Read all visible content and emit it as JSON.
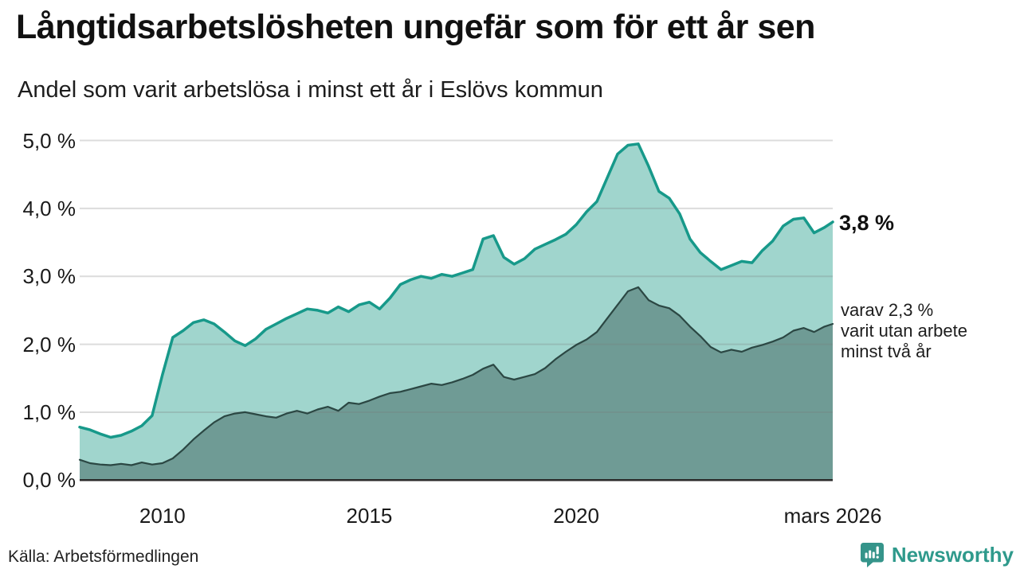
{
  "header": {
    "title": "Långtidsarbetslösheten ungefär som för ett år sen",
    "subtitle": "Andel som varit arbetslösa i minst ett år i Eslövs kommun"
  },
  "annotations": {
    "latest_total": "3,8 %",
    "secondary_line1": "varav 2,3 %",
    "secondary_line2": "varit utan arbete",
    "secondary_line3": "minst två år"
  },
  "footer": {
    "source": "Källa: Arbetsförmedlingen",
    "brand": "Newsworthy"
  },
  "colors": {
    "series1_line": "#17998a",
    "series1_fill": "#a0d5cd",
    "series2_line": "#2b4743",
    "series2_fill": "#6f9b95",
    "axis": "#2b2b2b",
    "gridline": "rgba(120,120,120,0.26)",
    "brand_teal": "#2f9a8c",
    "icon_teal": "#35948a"
  },
  "chart_data": {
    "type": "area",
    "title": "Långtidsarbetslösheten ungefär som för ett år sen",
    "subtitle": "Andel som varit arbetslösa i minst ett år i Eslövs kommun",
    "xlabel": "",
    "ylabel": "",
    "xlim": [
      2008,
      2026.2
    ],
    "ylim": [
      0,
      5
    ],
    "grid": "horizontal",
    "legend": "none",
    "yticks": [
      0,
      1,
      2,
      3,
      4,
      5
    ],
    "ytick_labels": [
      "0,0 %",
      "1,0 %",
      "2,0 %",
      "3,0 %",
      "4,0 %",
      "5,0 %"
    ],
    "xticks": [
      2010,
      2015,
      2020,
      2026.2
    ],
    "xtick_labels": [
      "2010",
      "2015",
      "2020",
      "mars 2026"
    ],
    "x": [
      2008,
      2008.25,
      2008.5,
      2008.75,
      2009,
      2009.25,
      2009.5,
      2009.75,
      2010,
      2010.25,
      2010.5,
      2010.75,
      2011,
      2011.25,
      2011.5,
      2011.75,
      2012,
      2012.25,
      2012.5,
      2012.75,
      2013,
      2013.25,
      2013.5,
      2013.75,
      2014,
      2014.25,
      2014.5,
      2014.75,
      2015,
      2015.25,
      2015.5,
      2015.75,
      2016,
      2016.25,
      2016.5,
      2016.75,
      2017,
      2017.25,
      2017.5,
      2017.75,
      2018,
      2018.25,
      2018.5,
      2018.75,
      2019,
      2019.25,
      2019.5,
      2019.75,
      2020,
      2020.25,
      2020.5,
      2020.75,
      2021,
      2021.25,
      2021.5,
      2021.75,
      2022,
      2022.25,
      2022.5,
      2022.75,
      2023,
      2023.25,
      2023.5,
      2023.75,
      2024,
      2024.25,
      2024.5,
      2024.75,
      2025,
      2025.25,
      2025.5,
      2025.75,
      2026,
      2026.2
    ],
    "series": [
      {
        "name": "Arbetslösa minst ett år",
        "latest_value": 3.8,
        "color": "#17998a",
        "fill": "#a0d5cd",
        "stroke_width": 3.5,
        "values": [
          0.78,
          0.74,
          0.68,
          0.63,
          0.66,
          0.72,
          0.8,
          0.95,
          1.55,
          2.1,
          2.2,
          2.32,
          2.36,
          2.3,
          2.18,
          2.05,
          1.98,
          2.08,
          2.22,
          2.3,
          2.38,
          2.45,
          2.52,
          2.5,
          2.46,
          2.55,
          2.48,
          2.58,
          2.62,
          2.52,
          2.68,
          2.88,
          2.95,
          3.0,
          2.97,
          3.03,
          3.0,
          3.05,
          3.1,
          3.55,
          3.6,
          3.28,
          3.18,
          3.26,
          3.4,
          3.47,
          3.54,
          3.62,
          3.76,
          3.95,
          4.1,
          4.45,
          4.8,
          4.93,
          4.95,
          4.62,
          4.25,
          4.15,
          3.92,
          3.55,
          3.35,
          3.22,
          3.1,
          3.16,
          3.22,
          3.2,
          3.38,
          3.52,
          3.74,
          3.84,
          3.86,
          3.64,
          3.72,
          3.8
        ]
      },
      {
        "name": "varav utan arbete minst två år",
        "latest_value": 2.3,
        "color": "#2b4743",
        "fill": "#6f9b95",
        "stroke_width": 2.2,
        "values": [
          0.3,
          0.25,
          0.23,
          0.22,
          0.24,
          0.22,
          0.26,
          0.23,
          0.25,
          0.32,
          0.45,
          0.6,
          0.73,
          0.85,
          0.94,
          0.98,
          1.0,
          0.97,
          0.94,
          0.92,
          0.98,
          1.02,
          0.98,
          1.04,
          1.08,
          1.02,
          1.14,
          1.12,
          1.17,
          1.23,
          1.28,
          1.3,
          1.34,
          1.38,
          1.42,
          1.4,
          1.44,
          1.49,
          1.55,
          1.64,
          1.7,
          1.52,
          1.48,
          1.52,
          1.56,
          1.65,
          1.78,
          1.89,
          1.99,
          2.07,
          2.18,
          2.38,
          2.58,
          2.78,
          2.84,
          2.65,
          2.57,
          2.53,
          2.42,
          2.26,
          2.12,
          1.96,
          1.88,
          1.92,
          1.89,
          1.95,
          1.99,
          2.04,
          2.1,
          2.2,
          2.24,
          2.18,
          2.26,
          2.3
        ]
      }
    ]
  }
}
